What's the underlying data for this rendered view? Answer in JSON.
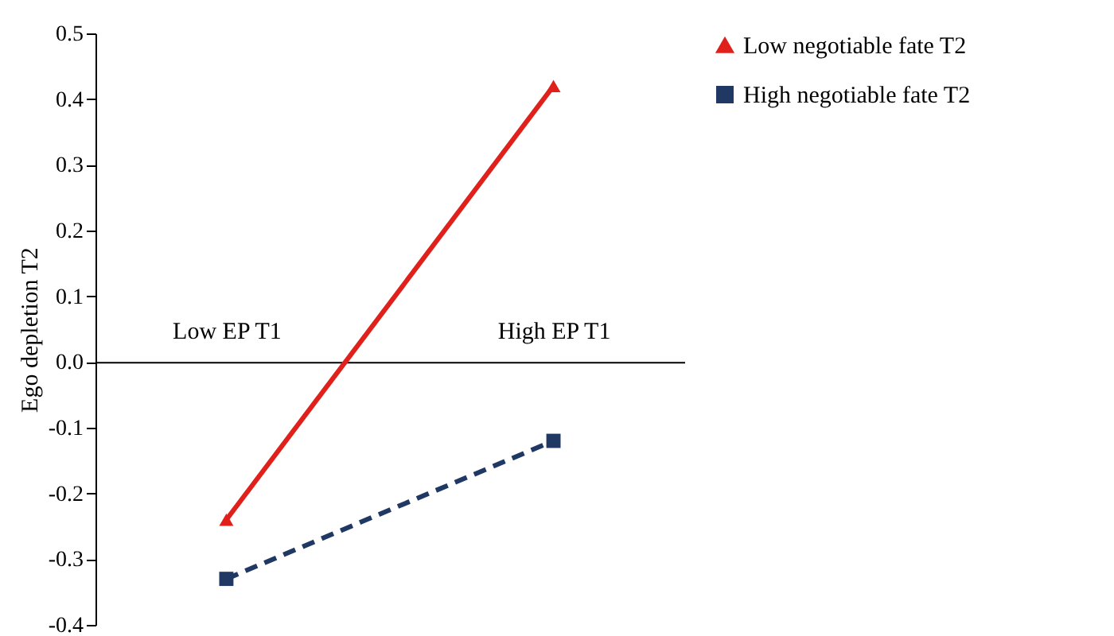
{
  "chart_data": {
    "type": "line",
    "ylabel": "Ego depletion T2",
    "categories": [
      "Low EP T1",
      "High EP T1"
    ],
    "series": [
      {
        "name": "Low negotiable fate T2",
        "color": "#e0201b",
        "values": [
          -0.24,
          0.42
        ],
        "marker": "triangle",
        "line_style": "solid"
      },
      {
        "name": "High negotiable fate T2",
        "color": "#1f3864",
        "values": [
          -0.33,
          -0.12
        ],
        "marker": "square",
        "line_style": "dashed"
      }
    ],
    "ylim": [
      -0.4,
      0.5
    ],
    "yticks": [
      -0.4,
      -0.3,
      -0.2,
      -0.1,
      {
        "value": 0,
        "label": "0.0"
      },
      0.1,
      0.2,
      0.3,
      0.4,
      0.5
    ],
    "grid": false,
    "legend": "top right"
  }
}
